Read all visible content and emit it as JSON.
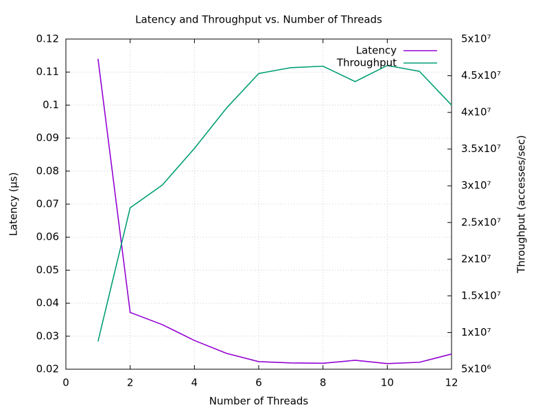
{
  "chart_data": {
    "type": "line",
    "title": "Latency and Throughput vs. Number of Threads",
    "x_label": "Number of Threads",
    "y_label": "Latency (µs)",
    "y2_label": "Throughput (accesses/sec)",
    "x": [
      1,
      2,
      3,
      4,
      5,
      6,
      7,
      8,
      9,
      10,
      11,
      12
    ],
    "series": [
      {
        "name": "Latency",
        "color": "#9400d3",
        "values": [
          0.114,
          0.0372,
          0.0335,
          0.0287,
          0.0248,
          0.0223,
          0.0219,
          0.0218,
          0.0227,
          0.0217,
          0.0221,
          0.0246
        ]
      },
      {
        "name": "Throughput",
        "color": "#009e73",
        "axis": "y2",
        "values": [
          8800000,
          27000000,
          30100000,
          35100000,
          40600000,
          45300000,
          46100000,
          46300000,
          44200000,
          46400000,
          45600000,
          41000000
        ]
      }
    ],
    "xlim": [
      0,
      12
    ],
    "xticks": [
      0,
      2,
      4,
      6,
      8,
      10,
      12
    ],
    "ylim": [
      0.02,
      0.12
    ],
    "yticks": [
      0.02,
      0.03,
      0.04,
      0.05,
      0.06,
      0.07,
      0.08,
      0.09,
      0.1,
      0.11,
      0.12
    ],
    "y2lim": [
      5000000,
      50000000
    ],
    "y2ticks": [
      {
        "value": 5000000,
        "label": "5x10⁶"
      },
      {
        "value": 10000000,
        "label": "1x10⁷"
      },
      {
        "value": 15000000,
        "label": "1.5x10⁷"
      },
      {
        "value": 20000000,
        "label": "2x10⁷"
      },
      {
        "value": 25000000,
        "label": "2.5x10⁷"
      },
      {
        "value": 30000000,
        "label": "3x10⁷"
      },
      {
        "value": 35000000,
        "label": "3.5x10⁷"
      },
      {
        "value": 40000000,
        "label": "4x10⁷"
      },
      {
        "value": 45000000,
        "label": "4.5x10⁷"
      },
      {
        "value": 50000000,
        "label": "5x10⁷"
      }
    ],
    "grid": true,
    "legend": "top-right"
  }
}
